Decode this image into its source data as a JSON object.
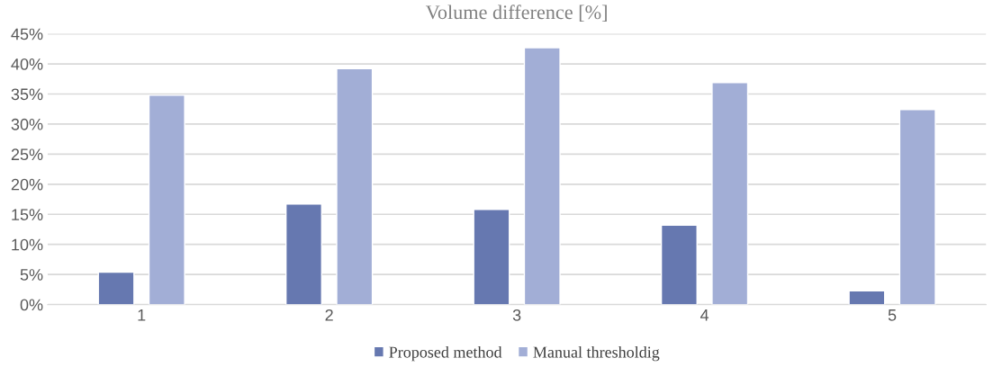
{
  "chart_data": {
    "type": "bar",
    "title": "Volume difference [%]",
    "categories": [
      "1",
      "2",
      "3",
      "4",
      "5"
    ],
    "series": [
      {
        "name": "Proposed method",
        "color": "#6678b0",
        "values": [
          5.4,
          16.7,
          15.8,
          13.2,
          2.3
        ]
      },
      {
        "name": "Manual thresholdig",
        "color": "#a2aed6",
        "values": [
          34.8,
          39.2,
          42.7,
          36.9,
          32.4
        ]
      }
    ],
    "ylim": [
      0,
      45
    ],
    "yticks": [
      {
        "value": 0,
        "label": "0%"
      },
      {
        "value": 5,
        "label": "5%"
      },
      {
        "value": 10,
        "label": "10%"
      },
      {
        "value": 15,
        "label": "15%"
      },
      {
        "value": 20,
        "label": "20%"
      },
      {
        "value": 25,
        "label": "25%"
      },
      {
        "value": 30,
        "label": "30%"
      },
      {
        "value": 35,
        "label": "35%"
      },
      {
        "value": 40,
        "label": "40%"
      },
      {
        "value": 45,
        "label": "45%"
      }
    ],
    "grid": "y",
    "legend": "bottom"
  }
}
